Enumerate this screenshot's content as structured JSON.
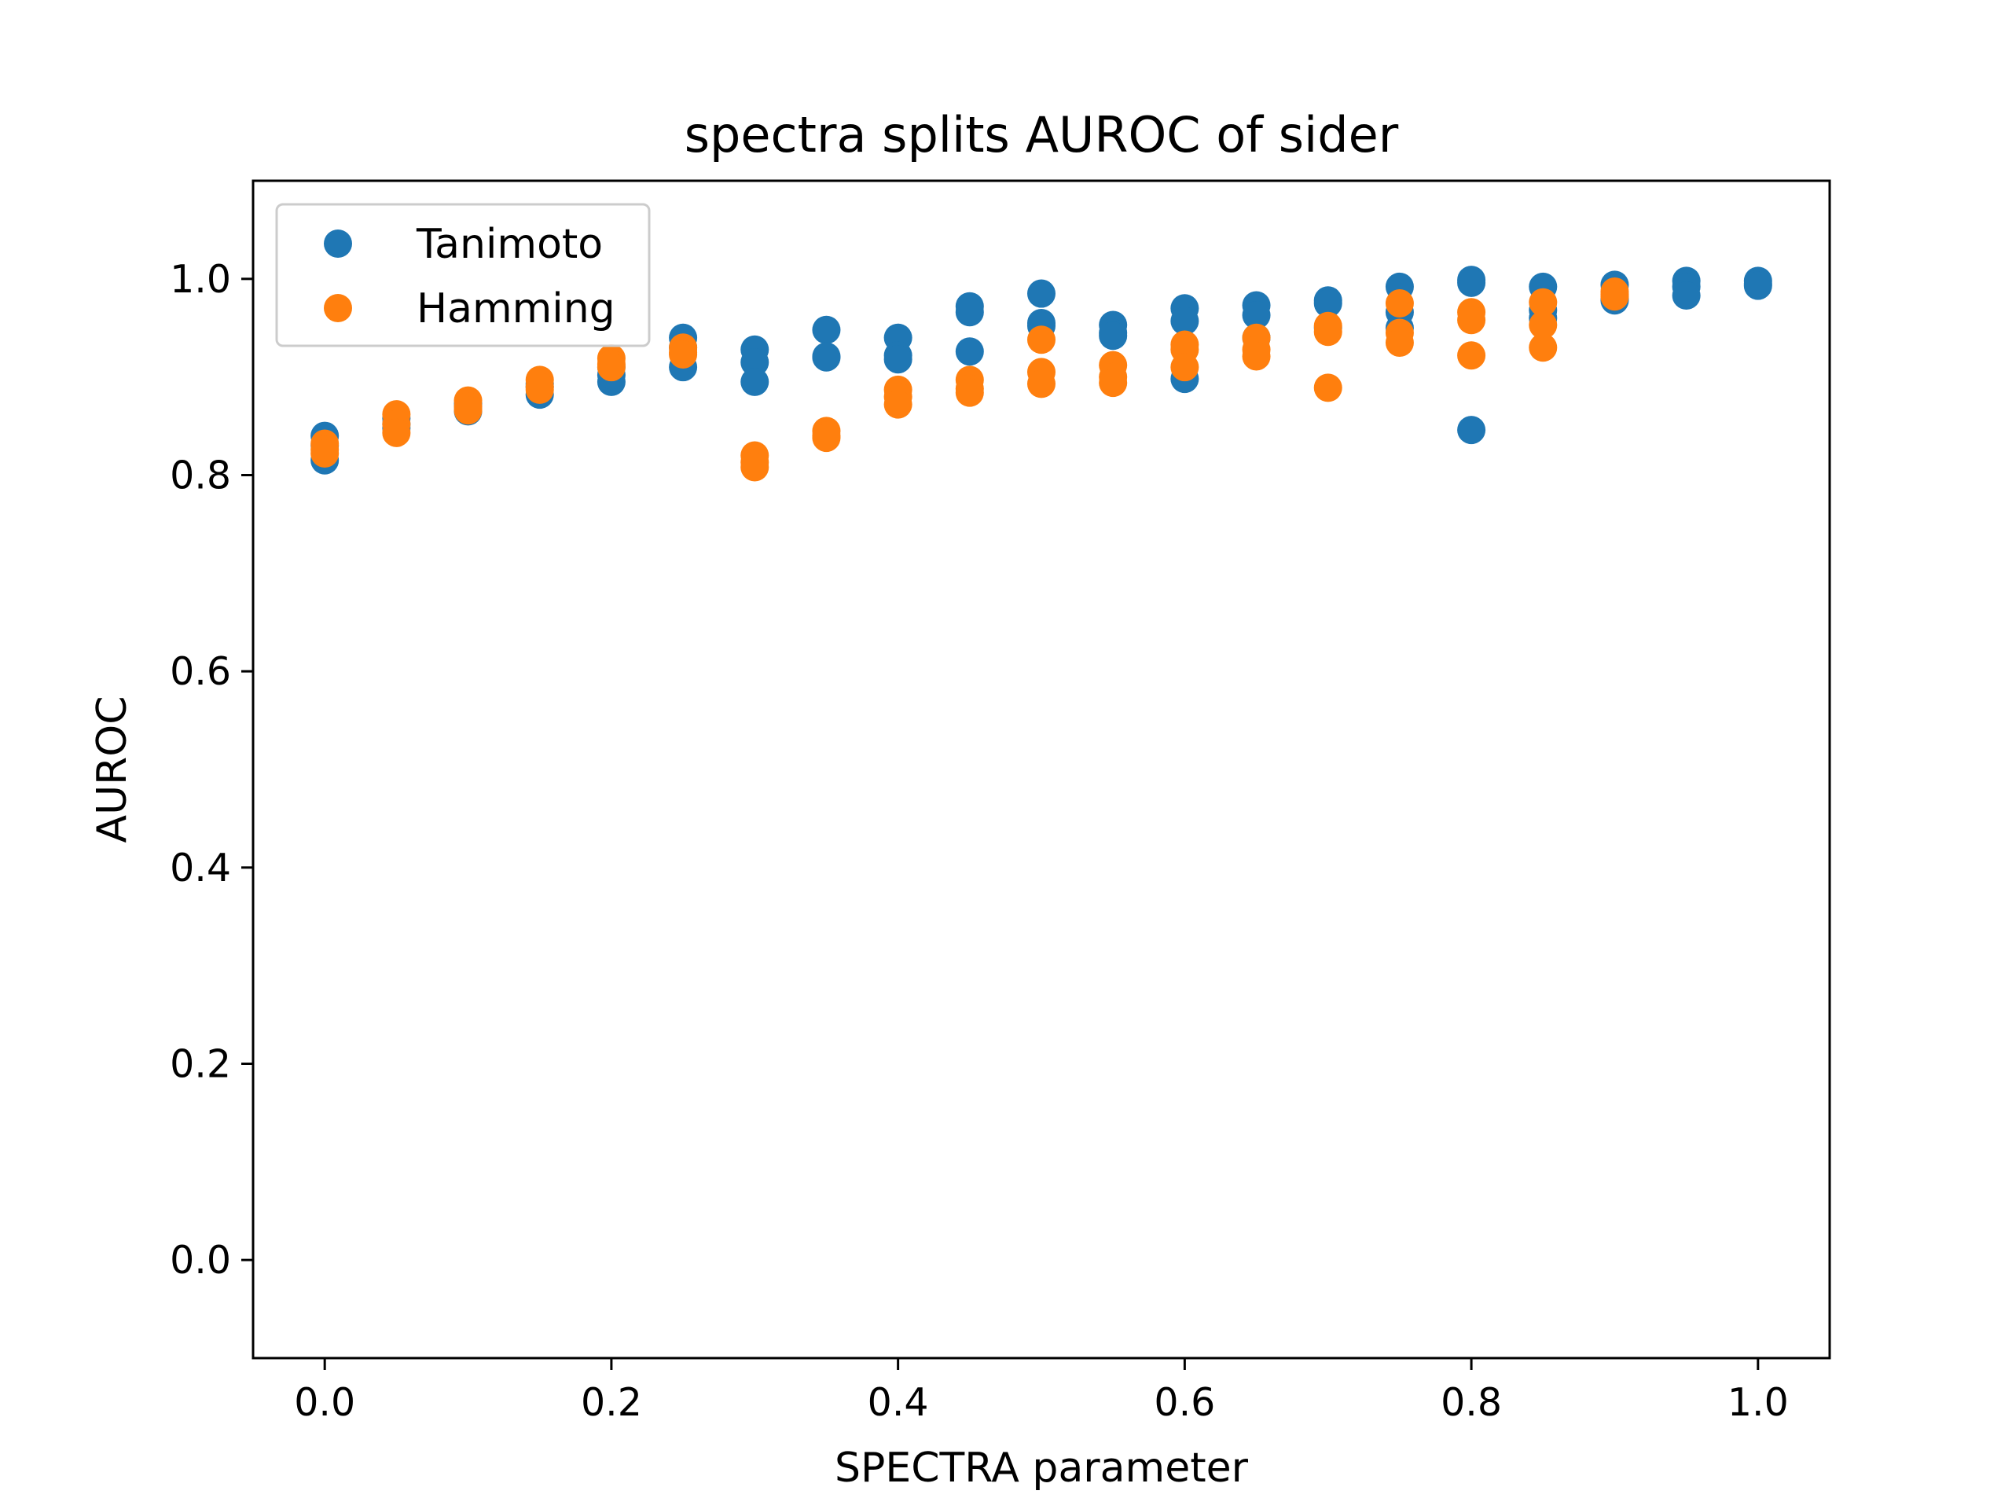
{
  "chart_data": {
    "type": "scatter",
    "title": "spectra splits AUROC of sider",
    "xlabel": "SPECTRA parameter",
    "ylabel": "AUROC",
    "xlim": [
      -0.05,
      1.05
    ],
    "ylim": [
      -0.1,
      1.1
    ],
    "x_ticks": [
      0.0,
      0.2,
      0.4,
      0.6,
      0.8,
      1.0
    ],
    "x_tick_labels": [
      "0.0",
      "0.2",
      "0.4",
      "0.6",
      "0.8",
      "1.0"
    ],
    "y_ticks": [
      0.0,
      0.2,
      0.4,
      0.6,
      0.8,
      1.0
    ],
    "y_tick_labels": [
      "0.0",
      "0.2",
      "0.4",
      "0.6",
      "0.8",
      "1.0"
    ],
    "grid": false,
    "legend_position": "upper-left",
    "series": [
      {
        "name": "Tanimoto",
        "color": "#1f77b4",
        "points": [
          [
            0.0,
            0.84
          ],
          [
            0.0,
            0.815
          ],
          [
            0.0,
            0.83
          ],
          [
            0.05,
            0.858
          ],
          [
            0.05,
            0.848
          ],
          [
            0.05,
            0.852
          ],
          [
            0.1,
            0.865
          ],
          [
            0.1,
            0.87
          ],
          [
            0.1,
            0.873
          ],
          [
            0.15,
            0.882
          ],
          [
            0.15,
            0.89
          ],
          [
            0.15,
            0.893
          ],
          [
            0.2,
            0.895
          ],
          [
            0.2,
            0.902
          ],
          [
            0.2,
            0.91
          ],
          [
            0.25,
            0.94
          ],
          [
            0.25,
            0.91
          ],
          [
            0.25,
            0.93
          ],
          [
            0.3,
            0.928
          ],
          [
            0.3,
            0.915
          ],
          [
            0.3,
            0.895
          ],
          [
            0.35,
            0.948
          ],
          [
            0.35,
            0.92
          ],
          [
            0.35,
            0.921
          ],
          [
            0.4,
            0.94
          ],
          [
            0.4,
            0.922
          ],
          [
            0.4,
            0.918
          ],
          [
            0.45,
            0.972
          ],
          [
            0.45,
            0.966
          ],
          [
            0.45,
            0.926
          ],
          [
            0.5,
            0.985
          ],
          [
            0.5,
            0.955
          ],
          [
            0.5,
            0.952
          ],
          [
            0.55,
            0.953
          ],
          [
            0.55,
            0.945
          ],
          [
            0.55,
            0.942
          ],
          [
            0.6,
            0.97
          ],
          [
            0.6,
            0.957
          ],
          [
            0.6,
            0.898
          ],
          [
            0.65,
            0.973
          ],
          [
            0.65,
            0.963
          ],
          [
            0.65,
            0.94
          ],
          [
            0.7,
            0.978
          ],
          [
            0.7,
            0.975
          ],
          [
            0.7,
            0.95
          ],
          [
            0.75,
            0.992
          ],
          [
            0.75,
            0.966
          ],
          [
            0.75,
            0.95
          ],
          [
            0.8,
            0.999
          ],
          [
            0.8,
            0.996
          ],
          [
            0.8,
            0.846
          ],
          [
            0.85,
            0.992
          ],
          [
            0.85,
            0.968
          ],
          [
            0.85,
            0.96
          ],
          [
            0.9,
            0.994
          ],
          [
            0.9,
            0.98
          ],
          [
            0.9,
            0.978
          ],
          [
            0.95,
            0.998
          ],
          [
            0.95,
            0.992
          ],
          [
            0.95,
            0.983
          ],
          [
            1.0,
            0.998
          ],
          [
            1.0,
            0.995
          ],
          [
            1.0,
            0.993
          ]
        ]
      },
      {
        "name": "Hamming",
        "color": "#ff7f0e",
        "points": [
          [
            0.0,
            0.832
          ],
          [
            0.0,
            0.826
          ],
          [
            0.0,
            0.822
          ],
          [
            0.05,
            0.862
          ],
          [
            0.05,
            0.852
          ],
          [
            0.05,
            0.843
          ],
          [
            0.1,
            0.876
          ],
          [
            0.1,
            0.87
          ],
          [
            0.1,
            0.866
          ],
          [
            0.15,
            0.897
          ],
          [
            0.15,
            0.89
          ],
          [
            0.15,
            0.887
          ],
          [
            0.2,
            0.919
          ],
          [
            0.2,
            0.913
          ],
          [
            0.2,
            0.91
          ],
          [
            0.25,
            0.93
          ],
          [
            0.25,
            0.925
          ],
          [
            0.25,
            0.923
          ],
          [
            0.3,
            0.82
          ],
          [
            0.3,
            0.813
          ],
          [
            0.3,
            0.808
          ],
          [
            0.35,
            0.845
          ],
          [
            0.35,
            0.84
          ],
          [
            0.35,
            0.838
          ],
          [
            0.4,
            0.887
          ],
          [
            0.4,
            0.88
          ],
          [
            0.4,
            0.872
          ],
          [
            0.45,
            0.897
          ],
          [
            0.45,
            0.888
          ],
          [
            0.45,
            0.884
          ],
          [
            0.5,
            0.938
          ],
          [
            0.5,
            0.905
          ],
          [
            0.5,
            0.893
          ],
          [
            0.55,
            0.912
          ],
          [
            0.55,
            0.9
          ],
          [
            0.55,
            0.894
          ],
          [
            0.6,
            0.933
          ],
          [
            0.6,
            0.928
          ],
          [
            0.6,
            0.91
          ],
          [
            0.65,
            0.94
          ],
          [
            0.65,
            0.928
          ],
          [
            0.65,
            0.921
          ],
          [
            0.7,
            0.952
          ],
          [
            0.7,
            0.946
          ],
          [
            0.7,
            0.889
          ],
          [
            0.75,
            0.975
          ],
          [
            0.75,
            0.945
          ],
          [
            0.75,
            0.935
          ],
          [
            0.8,
            0.966
          ],
          [
            0.8,
            0.958
          ],
          [
            0.8,
            0.922
          ],
          [
            0.85,
            0.976
          ],
          [
            0.85,
            0.953
          ],
          [
            0.85,
            0.93
          ],
          [
            0.9,
            0.987
          ],
          [
            0.9,
            0.984
          ],
          [
            0.9,
            0.982
          ]
        ]
      }
    ]
  }
}
